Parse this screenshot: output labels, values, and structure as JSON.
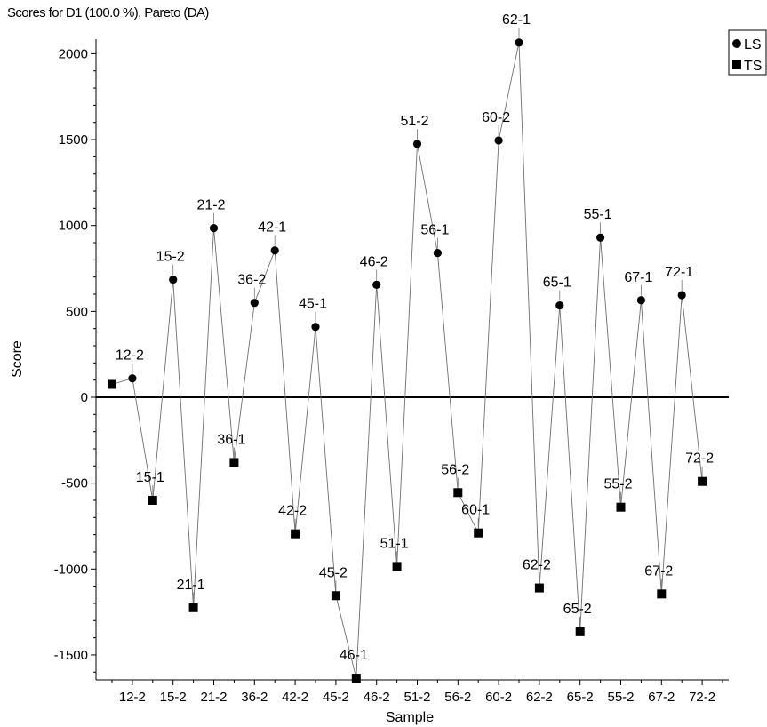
{
  "chart_data": {
    "type": "scatter",
    "title": "Scores for D1 (100.0 %), Pareto (DA)",
    "xlabel": "Sample",
    "ylabel": "Score",
    "ylim": [
      -1650,
      2080
    ],
    "y_ticks": [
      2000,
      1500,
      1000,
      500,
      0,
      -500,
      -1000,
      -1500
    ],
    "x_tick_labels": [
      "12-2",
      "15-2",
      "21-2",
      "36-2",
      "42-2",
      "45-2",
      "46-2",
      "51-2",
      "56-2",
      "60-2",
      "62-2",
      "65-2",
      "55-2",
      "67-2",
      "72-2"
    ],
    "zero_line": true,
    "grid": false,
    "legend_position": "top-right",
    "series": [
      {
        "name": "LS",
        "marker": "circle"
      },
      {
        "name": "TS",
        "marker": "square"
      }
    ],
    "points": [
      {
        "x": 1,
        "y": 75,
        "series": "TS",
        "label": ""
      },
      {
        "x": 2,
        "y": 110,
        "series": "LS",
        "label": "12-2"
      },
      {
        "x": 3,
        "y": -600,
        "series": "TS",
        "label": "15-1"
      },
      {
        "x": 4,
        "y": 685,
        "series": "LS",
        "label": "15-2"
      },
      {
        "x": 5,
        "y": -1225,
        "series": "TS",
        "label": "21-1"
      },
      {
        "x": 6,
        "y": 985,
        "series": "LS",
        "label": "21-2"
      },
      {
        "x": 7,
        "y": -380,
        "series": "TS",
        "label": "36-1"
      },
      {
        "x": 8,
        "y": 550,
        "series": "LS",
        "label": "36-2"
      },
      {
        "x": 9,
        "y": 855,
        "series": "LS",
        "label": "42-1"
      },
      {
        "x": 10,
        "y": -795,
        "series": "TS",
        "label": "42-2"
      },
      {
        "x": 11,
        "y": 410,
        "series": "LS",
        "label": "45-1"
      },
      {
        "x": 12,
        "y": -1155,
        "series": "TS",
        "label": "45-2"
      },
      {
        "x": 13,
        "y": -1635,
        "series": "TS",
        "label": "46-1"
      },
      {
        "x": 14,
        "y": 655,
        "series": "LS",
        "label": "46-2"
      },
      {
        "x": 15,
        "y": -985,
        "series": "TS",
        "label": "51-1"
      },
      {
        "x": 16,
        "y": 1475,
        "series": "LS",
        "label": "51-2"
      },
      {
        "x": 17,
        "y": 840,
        "series": "LS",
        "label": "56-1"
      },
      {
        "x": 18,
        "y": -555,
        "series": "TS",
        "label": "56-2"
      },
      {
        "x": 19,
        "y": -790,
        "series": "TS",
        "label": "60-1"
      },
      {
        "x": 20,
        "y": 1495,
        "series": "LS",
        "label": "60-2"
      },
      {
        "x": 21,
        "y": 2065,
        "series": "LS",
        "label": "62-1"
      },
      {
        "x": 22,
        "y": -1110,
        "series": "TS",
        "label": "62-2"
      },
      {
        "x": 23,
        "y": 535,
        "series": "LS",
        "label": "65-1"
      },
      {
        "x": 24,
        "y": -1365,
        "series": "TS",
        "label": "65-2"
      },
      {
        "x": 25,
        "y": 930,
        "series": "LS",
        "label": "55-1"
      },
      {
        "x": 26,
        "y": -640,
        "series": "TS",
        "label": "55-2"
      },
      {
        "x": 27,
        "y": 565,
        "series": "LS",
        "label": "67-1"
      },
      {
        "x": 28,
        "y": -1145,
        "series": "TS",
        "label": "67-2"
      },
      {
        "x": 29,
        "y": 595,
        "series": "LS",
        "label": "72-1"
      },
      {
        "x": 30,
        "y": -490,
        "series": "TS",
        "label": "72-2"
      }
    ]
  }
}
